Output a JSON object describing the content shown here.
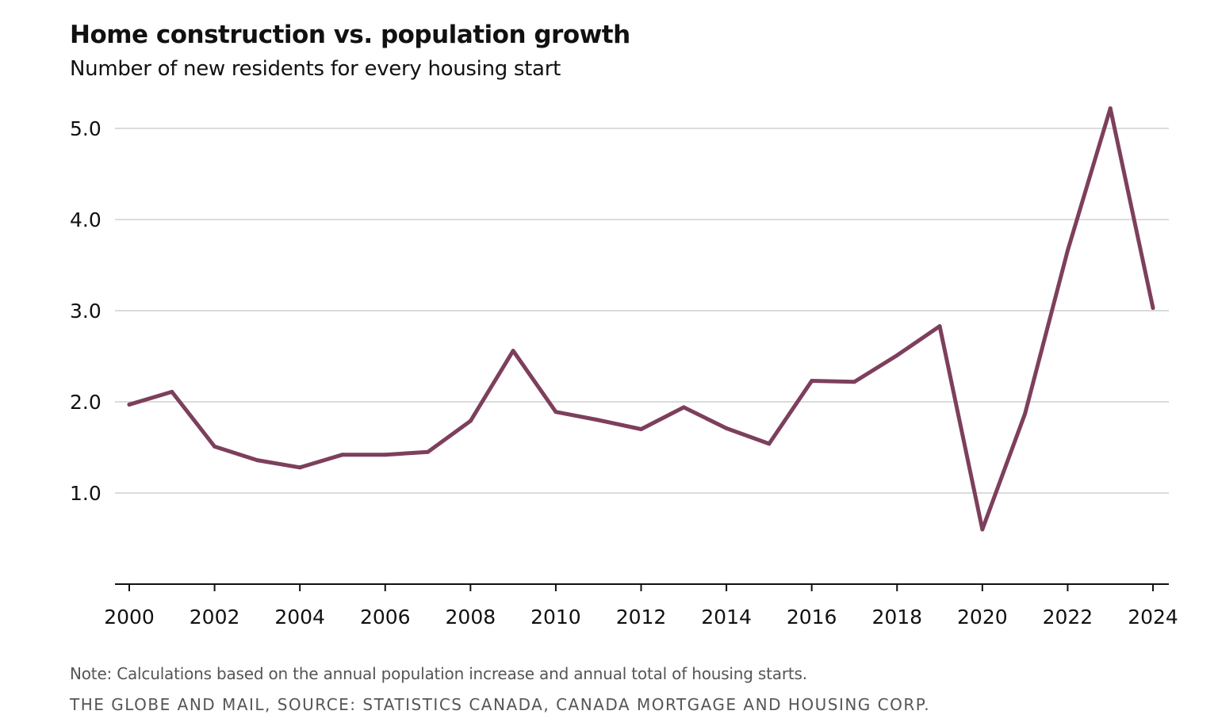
{
  "chart_data": {
    "type": "line",
    "title": "Home construction vs. population growth",
    "subtitle": "Number of new residents for every housing start",
    "xlabel": "",
    "ylabel": "",
    "x": [
      2000,
      2001,
      2002,
      2003,
      2004,
      2005,
      2006,
      2007,
      2008,
      2009,
      2010,
      2011,
      2012,
      2013,
      2014,
      2015,
      2016,
      2017,
      2018,
      2019,
      2020,
      2021,
      2022,
      2023,
      2024
    ],
    "series": [
      {
        "values": [
          1.97,
          2.11,
          1.51,
          1.36,
          1.28,
          1.42,
          1.42,
          1.45,
          1.79,
          2.56,
          1.89,
          1.8,
          1.7,
          1.94,
          1.71,
          1.54,
          2.23,
          2.22,
          2.51,
          2.83,
          0.6,
          1.87,
          3.66,
          5.22,
          3.03
        ],
        "color": "#7d3f5c"
      }
    ],
    "xlim": [
      2000,
      2024
    ],
    "ylim": [
      0,
      5.5
    ],
    "yticks": [
      "1.0",
      "2.0",
      "3.0",
      "4.0",
      "5.0"
    ],
    "xticks": [
      "2000",
      "2002",
      "2004",
      "2006",
      "2008",
      "2010",
      "2012",
      "2014",
      "2016",
      "2018",
      "2020",
      "2022",
      "2024"
    ],
    "grid": true,
    "legend": "none",
    "note": "Note: Calculations based on the annual population increase and annual total of housing starts.",
    "source": "THE GLOBE AND MAIL, SOURCE: STATISTICS CANADA, CANADA MORTGAGE AND HOUSING CORP."
  }
}
